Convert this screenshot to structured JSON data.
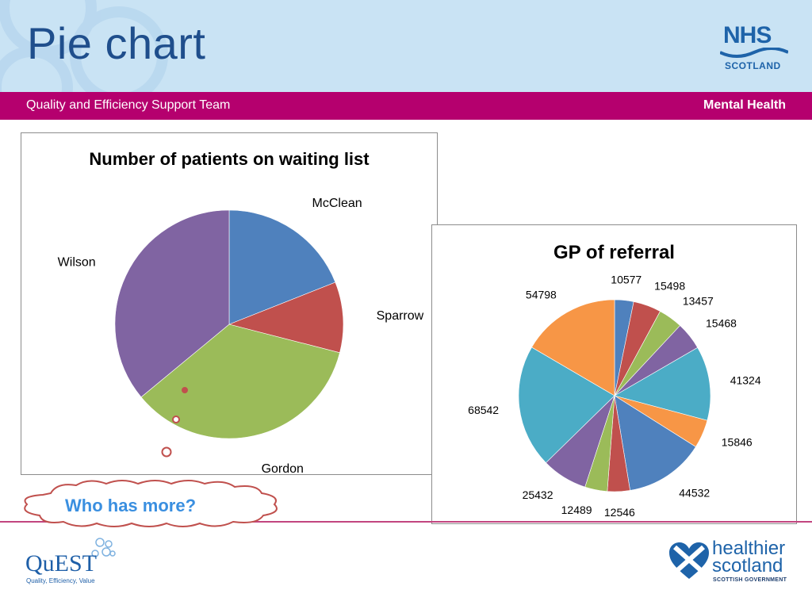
{
  "header": {
    "title": "Pie chart",
    "logo_main": "NHS",
    "logo_sub": "SCOTLAND"
  },
  "band": {
    "left": "Quality and Efficiency Support Team",
    "right": "Mental Health"
  },
  "callout": {
    "text": "Who has more?"
  },
  "footer": {
    "quest_name": "QuEST",
    "quest_tagline": "Quality, Efficiency, Value",
    "hs_line1": "healthier",
    "hs_line2": "scotland",
    "hs_line3": "SCOTTISH GOVERNMENT"
  },
  "colors": {
    "title": "#1f4e8c",
    "header_bg": "#c9e3f4",
    "band": "#b5006e",
    "callout_text": "#3a8fe0"
  },
  "chart_data": [
    {
      "type": "pie",
      "title": "Number of patients on waiting list",
      "slices": [
        {
          "label": "McClean",
          "value": 19,
          "color": "#4f81bd"
        },
        {
          "label": "Sparrow",
          "value": 10,
          "color": "#c0504d"
        },
        {
          "label": "Gordon",
          "value": 35,
          "color": "#9bbb59"
        },
        {
          "label": "Wilson",
          "value": 36,
          "color": "#8064a2"
        }
      ],
      "legend": "none",
      "data_labels": "category names"
    },
    {
      "type": "pie",
      "title": "GP of referral",
      "slices": [
        {
          "label": "10577",
          "value": 10577,
          "color": "#4f81bd"
        },
        {
          "label": "15498",
          "value": 15498,
          "color": "#c0504d"
        },
        {
          "label": "13457",
          "value": 13457,
          "color": "#9bbb59"
        },
        {
          "label": "15468",
          "value": 15468,
          "color": "#8064a2"
        },
        {
          "label": "41324",
          "value": 41324,
          "color": "#4bacc6"
        },
        {
          "label": "15846",
          "value": 15846,
          "color": "#f79646"
        },
        {
          "label": "44532",
          "value": 44532,
          "color": "#4f81bd"
        },
        {
          "label": "12546",
          "value": 12546,
          "color": "#c0504d"
        },
        {
          "label": "12489",
          "value": 12489,
          "color": "#9bbb59"
        },
        {
          "label": "25432",
          "value": 25432,
          "color": "#8064a2"
        },
        {
          "label": "68542",
          "value": 68542,
          "color": "#4bacc6"
        },
        {
          "label": "54798",
          "value": 54798,
          "color": "#f79646"
        }
      ],
      "legend": "none",
      "data_labels": "values"
    }
  ]
}
